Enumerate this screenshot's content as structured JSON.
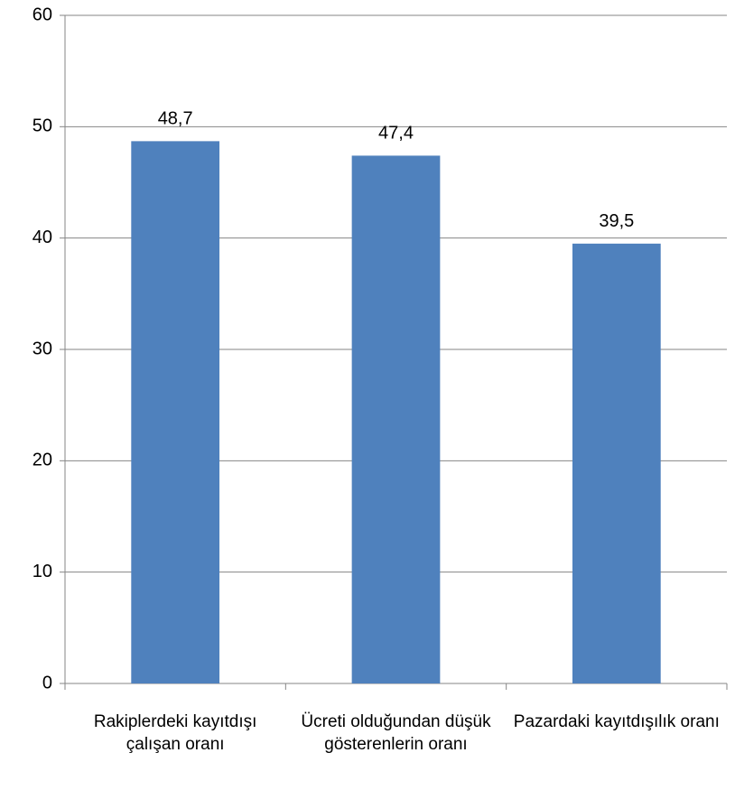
{
  "chart_data": {
    "type": "bar",
    "categories": [
      "Rakiplerdeki kayıtdışı çalışan oranı",
      "Ücreti olduğundan düşük gösterenlerin oranı",
      "Pazardaki kayıtdışılık oranı"
    ],
    "values": [
      48.7,
      47.4,
      39.5
    ],
    "value_labels": [
      "48,7",
      "47,4",
      "39,5"
    ],
    "color": "#4f81bd",
    "ylim": [
      0,
      60
    ],
    "yticks": [
      0,
      10,
      20,
      30,
      40,
      50,
      60
    ],
    "grid": true
  }
}
